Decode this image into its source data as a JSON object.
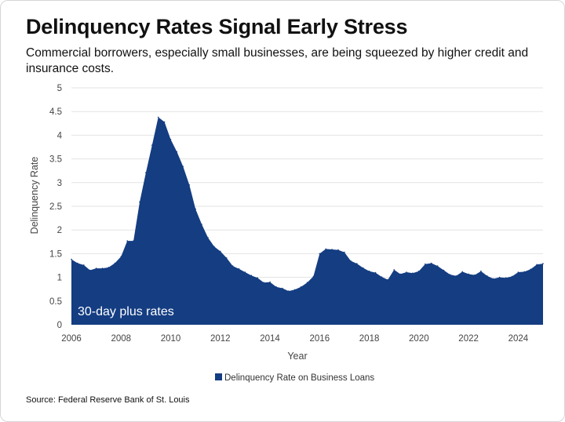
{
  "header": {
    "title": "Delinquency Rates Signal Early Stress",
    "subtitle": "Commercial borrowers, especially small businesses, are being squeezed by higher credit and insurance costs."
  },
  "footer": {
    "source": "Source: Federal Reserve Bank of St. Louis"
  },
  "colors": {
    "area": "#143d82",
    "grid": "#e3e3e3",
    "text": "#444444"
  },
  "chart_data": {
    "type": "area",
    "title": "Delinquency Rates Signal Early Stress",
    "xlabel": "Year",
    "ylabel": "Delinquency Rate",
    "annotation": "30-day plus rates",
    "xlim": [
      2006,
      2025
    ],
    "ylim": [
      0,
      5
    ],
    "xticks": [
      2006,
      2008,
      2010,
      2012,
      2014,
      2016,
      2018,
      2020,
      2022,
      2024
    ],
    "yticks": [
      0,
      0.5,
      1,
      1.5,
      2,
      2.5,
      3,
      3.5,
      4,
      4.5,
      5
    ],
    "ytick_labels": [
      "0",
      "0.5",
      "1",
      "1.5",
      "2",
      "2.5",
      "3",
      "3.5",
      "4",
      "4.5",
      "5"
    ],
    "grid": true,
    "legend_position": "bottom",
    "series": [
      {
        "name": "Delinquency Rate on Business Loans",
        "color": "#143d82",
        "x": [
          2006,
          2006.25,
          2006.5,
          2006.75,
          2007,
          2007.25,
          2007.5,
          2007.75,
          2008,
          2008.25,
          2008.5,
          2008.75,
          2009,
          2009.25,
          2009.5,
          2009.75,
          2010,
          2010.25,
          2010.5,
          2010.75,
          2011,
          2011.25,
          2011.5,
          2011.75,
          2012,
          2012.25,
          2012.5,
          2012.75,
          2013,
          2013.25,
          2013.5,
          2013.75,
          2014,
          2014.25,
          2014.5,
          2014.75,
          2015,
          2015.25,
          2015.5,
          2015.75,
          2016,
          2016.25,
          2016.5,
          2016.75,
          2017,
          2017.25,
          2017.5,
          2017.75,
          2018,
          2018.25,
          2018.5,
          2018.75,
          2019,
          2019.25,
          2019.5,
          2019.75,
          2020,
          2020.25,
          2020.5,
          2020.75,
          2021,
          2021.25,
          2021.5,
          2021.75,
          2022,
          2022.25,
          2022.5,
          2022.75,
          2023,
          2023.25,
          2023.5,
          2023.75,
          2024,
          2024.25,
          2024.5,
          2024.75,
          2025
        ],
        "values": [
          1.38,
          1.3,
          1.26,
          1.15,
          1.19,
          1.19,
          1.21,
          1.3,
          1.44,
          1.77,
          1.77,
          2.59,
          3.21,
          3.79,
          4.38,
          4.28,
          3.91,
          3.65,
          3.34,
          2.95,
          2.44,
          2.12,
          1.84,
          1.65,
          1.55,
          1.41,
          1.24,
          1.18,
          1.11,
          1.04,
          0.99,
          0.89,
          0.9,
          0.8,
          0.77,
          0.71,
          0.74,
          0.8,
          0.89,
          1.02,
          1.5,
          1.6,
          1.59,
          1.58,
          1.53,
          1.35,
          1.29,
          1.2,
          1.13,
          1.1,
          1.01,
          0.95,
          1.16,
          1.07,
          1.11,
          1.09,
          1.13,
          1.28,
          1.3,
          1.24,
          1.15,
          1.06,
          1.03,
          1.12,
          1.07,
          1.05,
          1.13,
          1.03,
          0.97,
          1.0,
          0.99,
          1.02,
          1.11,
          1.12,
          1.17,
          1.27,
          1.29
        ]
      }
    ]
  }
}
